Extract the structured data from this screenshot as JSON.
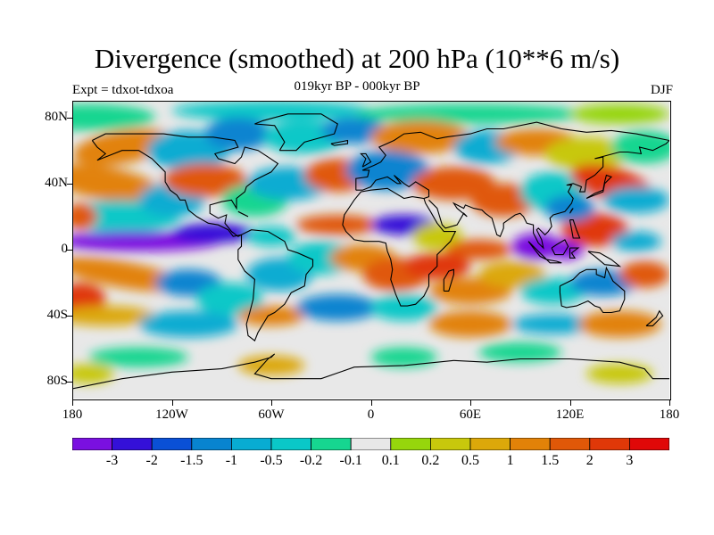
{
  "header": {
    "title": "Divergence (smoothed) at 200 hPa (10**6 m/s)",
    "subtitle": "019kyr BP - 000kyr BP",
    "expt": "Expt = tdxot-tdxoa",
    "season": "DJF"
  },
  "axes": {
    "y_labels": [
      "80N",
      "40N",
      "0",
      "40S",
      "80S"
    ],
    "x_labels": [
      "180",
      "120W",
      "60W",
      "0",
      "60E",
      "120E",
      "180"
    ]
  },
  "colorbar": {
    "labels": [
      "-3",
      "-2",
      "-1.5",
      "-1",
      "-0.5",
      "-0.2",
      "-0.1",
      "0.1",
      "0.2",
      "0.5",
      "1",
      "1.5",
      "2",
      "3"
    ],
    "colors": [
      "#7a10e0",
      "#3410d8",
      "#0a50d6",
      "#0884d0",
      "#08acd2",
      "#0ac8c8",
      "#16d690",
      "#e8e8e8",
      "#96d60c",
      "#c8c80c",
      "#dca80a",
      "#e28208",
      "#e05808",
      "#e03808",
      "#e00808"
    ]
  },
  "chart_data": {
    "type": "heatmap",
    "title": "Divergence (smoothed) at 200 hPa (10**6 m/s)",
    "subtitle": "019kyr BP - 000kyr BP",
    "xlabel": "",
    "ylabel": "",
    "x_ticks": [
      "180",
      "120W",
      "60W",
      "0",
      "60E",
      "120E",
      "180"
    ],
    "y_ticks": [
      "80N",
      "40N",
      "0",
      "40S",
      "80S"
    ],
    "xlim": [
      -180,
      180
    ],
    "ylim": [
      -90,
      90
    ],
    "levels": [
      -3,
      -2,
      -1.5,
      -1,
      -0.5,
      -0.2,
      -0.1,
      0.1,
      0.2,
      0.5,
      1,
      1.5,
      2,
      3
    ],
    "grid": false,
    "colorbar": "bottom"
  }
}
